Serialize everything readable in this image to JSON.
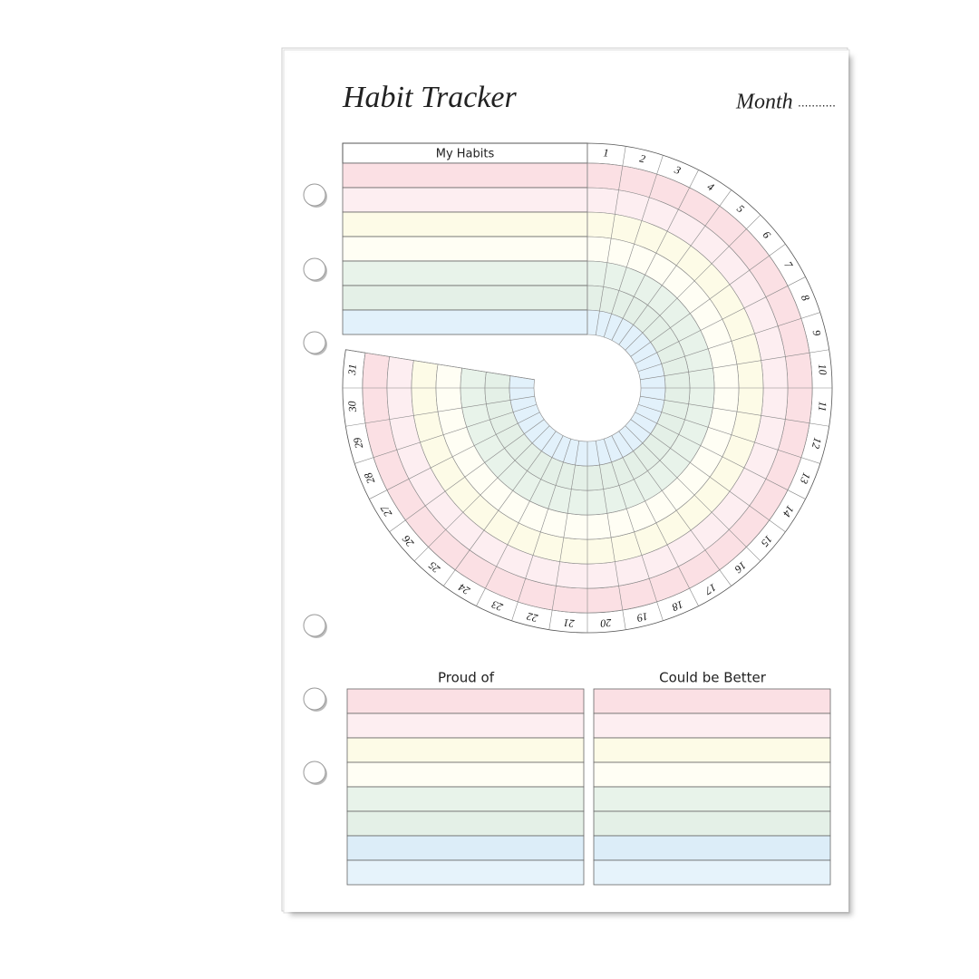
{
  "header": {
    "title": "Habit Tracker",
    "month_label": "Month",
    "month_blank": "..........."
  },
  "habits": {
    "header": "My Habits"
  },
  "days": [
    1,
    2,
    3,
    4,
    5,
    6,
    7,
    8,
    9,
    10,
    11,
    12,
    13,
    14,
    15,
    16,
    17,
    18,
    19,
    20,
    21,
    22,
    23,
    24,
    25,
    26,
    27,
    28,
    29,
    30,
    31
  ],
  "reflection": {
    "left_title": "Proud of",
    "right_title": "Could be Better"
  }
}
